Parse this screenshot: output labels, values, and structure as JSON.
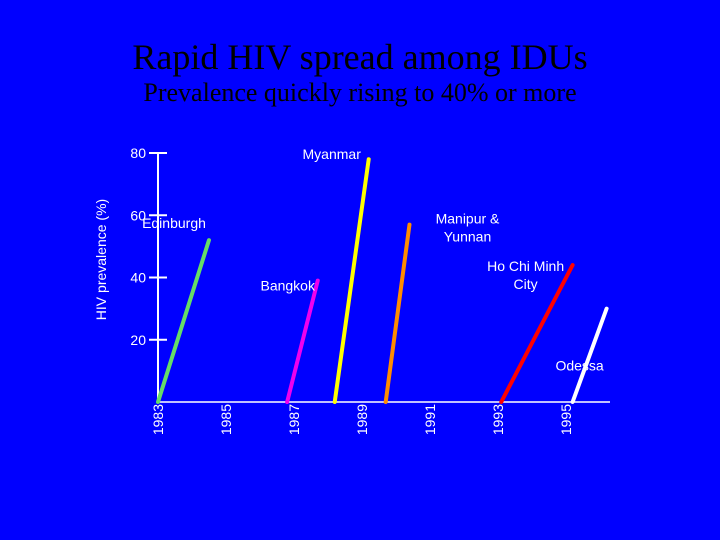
{
  "title": "Rapid HIV spread among IDUs",
  "subtitle": "Prevalence quickly rising to 40% or more",
  "chart_data": {
    "type": "line",
    "ylabel": "HIV prevalence (%)",
    "xlabel": "",
    "yticks": [
      20,
      40,
      60,
      80
    ],
    "xticks": [
      "1983",
      "1985",
      "1987",
      "1989",
      "1991",
      "1993",
      "1995"
    ],
    "xlim": [
      1983,
      1996.3
    ],
    "ylim": [
      0,
      80
    ],
    "series": [
      {
        "name": "Edinburgh",
        "label": "Edinburgh",
        "color": "#66dd66",
        "points": [
          [
            1983,
            0
          ],
          [
            1984.5,
            52
          ]
        ]
      },
      {
        "name": "Bangkok",
        "label": "Bangkok",
        "color": "#ee00ee",
        "points": [
          [
            1986.8,
            0
          ],
          [
            1987.7,
            39
          ]
        ]
      },
      {
        "name": "Myanmar",
        "label": "Myanmar",
        "color": "#ffff00",
        "points": [
          [
            1988.2,
            0
          ],
          [
            1989.2,
            78
          ]
        ]
      },
      {
        "name": "Manipur & Yunnan",
        "label": [
          "Manipur &",
          "Yunnan"
        ],
        "color": "#ff8c00",
        "points": [
          [
            1989.7,
            0
          ],
          [
            1990.4,
            57
          ]
        ]
      },
      {
        "name": "Ho Chi Minh City",
        "label": [
          "Ho Chi Minh",
          "City"
        ],
        "color": "#ff0000",
        "points": [
          [
            1993.1,
            0
          ],
          [
            1995.2,
            44
          ]
        ]
      },
      {
        "name": "Odessa",
        "label": "Odessa",
        "color": "#ffffff",
        "points": [
          [
            1995.2,
            0
          ],
          [
            1996.2,
            30
          ]
        ]
      }
    ]
  }
}
